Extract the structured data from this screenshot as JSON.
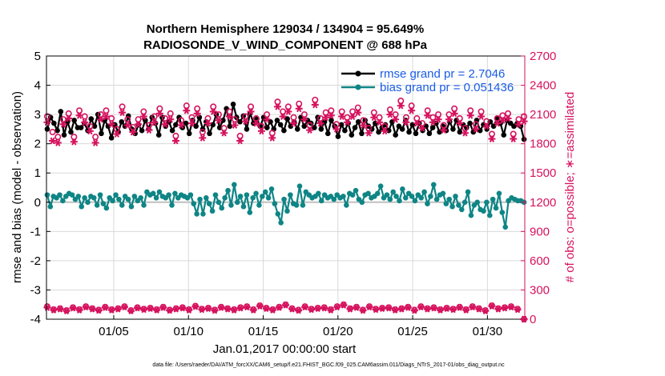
{
  "chart_data": {
    "type": "line",
    "title_line1": "Northern Hemisphere 129034 / 134904 = 95.649%",
    "title_line2": "RADIOSONDE_V_WIND_COMPONENT @ 688 hPa",
    "xlabel": "Jan.01,2017 00:00:00 start",
    "ylabel_left": "rmse and bias (model - observation)",
    "ylabel_right": "# of obs: o=possible; ∗=assimilated",
    "xlim": [
      0.5,
      32.5
    ],
    "ylim_left": [
      -4,
      5
    ],
    "ylim_right": [
      0,
      2700
    ],
    "x_ticks": [
      5,
      10,
      15,
      20,
      25,
      30
    ],
    "x_tick_labels": [
      "01/05",
      "01/10",
      "01/15",
      "01/20",
      "01/25",
      "01/30"
    ],
    "y_left_ticks": [
      "-4",
      "-3",
      "-2",
      "-1",
      "0",
      "1",
      "2",
      "3",
      "4",
      "5"
    ],
    "y_right_ticks": [
      "0",
      "300",
      "600",
      "900",
      "1200",
      "1500",
      "1800",
      "2100",
      "2400",
      "2700"
    ],
    "zero_line": 0,
    "legend": {
      "position": "top-right",
      "entries": [
        "rmse grand pr = 2.7046",
        "bias grand pr = 0.051436"
      ]
    },
    "colors": {
      "rmse": "#000000",
      "bias": "#0f8585",
      "obs": "#d6125e",
      "legend_text": "#1a5ce6",
      "zero_line": "#c0c0c0",
      "grid": "#d9d9d9"
    },
    "footer": "data file: /Users/raeder/DAI/ATM_forcXX/CAM6_setup/f.e21.FHIST_BGC.f09_025.CAM6assim.011/Diags_NTrS_2017-01/obs_diag_output.nc",
    "series": [
      {
        "name": "rmse",
        "axis": "left",
        "marker": "filled-circle",
        "values": [
          2.5,
          2.9,
          2.7,
          2.45,
          3.1,
          2.3,
          2.75,
          2.4,
          2.8,
          2.55,
          2.55,
          2.7,
          2.45,
          2.85,
          2.6,
          3.0,
          2.35,
          2.8,
          2.6,
          2.2,
          2.65,
          2.4,
          2.75,
          2.6,
          2.95,
          2.5,
          2.35,
          2.65,
          2.45,
          2.8,
          2.5,
          2.9,
          2.7,
          2.3,
          2.9,
          2.6,
          2.75,
          2.45,
          2.65,
          2.9,
          2.55,
          2.7,
          2.35,
          2.8,
          2.6,
          2.9,
          2.5,
          2.75,
          2.35,
          2.65,
          3.0,
          2.55,
          2.8,
          3.2,
          2.6,
          3.35,
          2.9,
          2.75,
          2.95,
          2.5,
          3.05,
          2.7,
          2.85,
          2.6,
          2.9,
          2.55,
          2.75,
          2.5,
          2.8,
          2.65,
          2.45,
          2.85,
          2.6,
          2.75,
          2.5,
          2.9,
          2.6,
          2.8,
          2.7,
          2.55,
          2.9,
          2.5,
          2.75,
          2.35,
          2.8,
          2.6,
          2.25,
          2.65,
          2.45,
          2.7,
          2.3,
          2.55,
          2.75,
          2.35,
          2.8,
          2.6,
          2.5,
          2.7,
          2.4,
          2.55,
          2.65,
          2.45,
          2.75,
          2.3,
          2.6,
          2.5,
          2.8,
          2.4,
          2.65,
          2.35,
          2.7,
          2.45,
          2.6,
          2.35,
          2.55,
          2.7,
          2.4,
          2.6,
          2.45,
          2.75,
          2.5,
          2.8,
          2.4,
          2.65,
          2.55,
          2.7,
          2.4,
          2.8,
          2.45,
          2.65,
          2.5,
          2.75,
          2.6,
          2.85,
          2.7,
          2.3,
          2.8,
          2.7,
          2.6,
          2.7,
          2.6,
          2.15
        ]
      },
      {
        "name": "bias",
        "axis": "left",
        "marker": "filled-circle",
        "values": [
          0.25,
          -0.15,
          0.2,
          0.15,
          0.25,
          0.05,
          0.2,
          0.3,
          0.25,
          0.1,
          0.2,
          -0.15,
          0.15,
          0.0,
          0.2,
          0.15,
          -0.1,
          0.25,
          -0.05,
          -0.2,
          0.15,
          0.05,
          0.25,
          0.1,
          -0.1,
          0.2,
          0.1,
          -0.15,
          0.2,
          0.05,
          0.15,
          -0.1,
          0.35,
          0.25,
          0.3,
          0.15,
          0.35,
          0.2,
          0.15,
          0.25,
          -0.1,
          0.3,
          0.15,
          0.25,
          0.2,
          0.15,
          0.25,
          -0.05,
          -0.4,
          0.1,
          -0.4,
          0.15,
          -0.05,
          -0.3,
          0.25,
          0.0,
          -0.2,
          0.15,
          0.4,
          -0.1,
          0.6,
          0.0,
          0.2,
          -0.15,
          0.25,
          -0.35,
          0.15,
          0.3,
          -0.1,
          0.2,
          0.35,
          0.15,
          0.45,
          -0.05,
          -0.4,
          -0.7,
          0.1,
          -0.3,
          0.25,
          -0.05,
          -0.1,
          0.55,
          -0.1,
          0.35,
          0.25,
          0.15,
          0.2,
          0.3,
          0.05,
          0.25,
          0.15,
          0.2,
          0.1,
          0.25,
          0.15,
          0.2,
          -0.1,
          0.3,
          0.25,
          0.4,
          0.1,
          0.0,
          0.25,
          0.3,
          0.15,
          0.2,
          0.3,
          0.55,
          0.15,
          0.25,
          0.1,
          0.35,
          0.2,
          0.05,
          0.45,
          0.15,
          0.3,
          0.2,
          0.05,
          0.25,
          0.15,
          0.35,
          -0.05,
          0.2,
          0.6,
          0.1,
          0.25,
          0.3,
          -0.05,
          0.1,
          -0.15,
          0.2,
          -0.1,
          -0.25,
          0.0,
          0.35,
          -0.45,
          -0.1,
          0.0,
          -0.25,
          -0.3,
          0.0,
          -0.45,
          0.1,
          -0.2,
          0.3,
          -0.35,
          -0.85,
          0.05,
          0.15,
          0.1,
          0.05,
          0.05,
          0.0
        ]
      },
      {
        "name": "obs possible",
        "axis": "right",
        "marker": "open-circle",
        "values": [
          2080,
          1920,
          1870,
          2050,
          2110,
          1870,
          2140,
          2080,
          1980,
          1870,
          2100,
          2140,
          2060,
          1950,
          2180,
          2050,
          1970,
          2050,
          2130,
          1990,
          2080,
          2160,
          2060,
          2110,
          1880,
          2040,
          2190,
          2070,
          2160,
          1920,
          2060,
          2180,
          2100,
          1960,
          2130,
          2050,
          1880,
          2080,
          2180,
          2060,
          1980,
          2100,
          1910,
          2230,
          2130,
          2180,
          2070,
          2210,
          2100,
          1990,
          2250,
          2060,
          2120,
          2140,
          2000,
          2130,
          2070,
          2130,
          2170,
          2040,
          1960,
          2120,
          2070,
          1980,
          2150,
          2100,
          2240,
          2070,
          2190,
          2060,
          2010,
          2140,
          2070,
          2100,
          1990,
          2100,
          2160,
          2060,
          1960,
          2140,
          2000,
          2130,
          2030,
          1900,
          2060,
          2090,
          2110,
          1900,
          2050,
          2080
        ]
      },
      {
        "name": "obs assimilated",
        "axis": "right",
        "marker": "asterisk",
        "values": [
          2020,
          1830,
          1810,
          2000,
          2060,
          1820,
          2090,
          2020,
          1930,
          1810,
          2050,
          2080,
          2000,
          1900,
          2120,
          1990,
          1920,
          2000,
          2080,
          1940,
          2020,
          2110,
          2000,
          2050,
          1830,
          1990,
          2140,
          2010,
          2110,
          1860,
          2010,
          2130,
          2040,
          1910,
          2080,
          1990,
          1830,
          2030,
          2130,
          2010,
          1930,
          2050,
          1860,
          2180,
          2080,
          2130,
          2010,
          2160,
          2050,
          1940,
          2200,
          2010,
          2070,
          2090,
          1950,
          2080,
          2020,
          2080,
          2120,
          1990,
          1910,
          2070,
          2020,
          1930,
          2100,
          2050,
          2190,
          2020,
          2140,
          2010,
          1960,
          2090,
          2020,
          2050,
          1940,
          2050,
          2110,
          2010,
          1910,
          2090,
          1950,
          2080,
          1980,
          1850,
          2010,
          2040,
          2060,
          1850,
          2000,
          2030
        ]
      },
      {
        "name": "obs possible (night)",
        "axis": "right",
        "marker": "open-circle",
        "values": [
          130,
          100,
          110,
          90,
          120,
          100,
          130,
          110,
          95,
          125,
          100,
          110,
          130,
          90,
          120,
          105,
          115,
          100,
          125,
          95,
          110,
          120,
          100,
          135,
          105,
          115,
          95,
          125,
          110,
          100,
          120,
          130,
          100,
          140,
          115,
          100,
          125,
          150,
          110,
          95,
          130,
          105,
          115,
          120,
          100,
          130,
          150,
          110,
          125,
          95,
          130,
          105,
          115,
          120,
          100,
          110,
          125,
          95,
          130,
          110,
          120,
          100,
          115,
          105,
          125,
          100,
          130,
          110,
          90,
          140,
          110,
          120,
          130,
          105,
          0
        ]
      },
      {
        "name": "obs assimilated (night)",
        "axis": "right",
        "marker": "asterisk",
        "values": [
          120,
          95,
          105,
          85,
          115,
          95,
          125,
          105,
          90,
          120,
          95,
          105,
          125,
          85,
          115,
          100,
          110,
          95,
          120,
          90,
          105,
          115,
          95,
          130,
          100,
          110,
          90,
          120,
          105,
          95,
          115,
          125,
          95,
          135,
          110,
          95,
          120,
          145,
          105,
          90,
          125,
          100,
          110,
          115,
          95,
          125,
          145,
          105,
          120,
          90,
          125,
          100,
          110,
          115,
          95,
          105,
          120,
          90,
          125,
          105,
          115,
          95,
          110,
          100,
          120,
          95,
          125,
          105,
          85,
          135,
          105,
          115,
          125,
          100,
          0
        ]
      }
    ]
  }
}
